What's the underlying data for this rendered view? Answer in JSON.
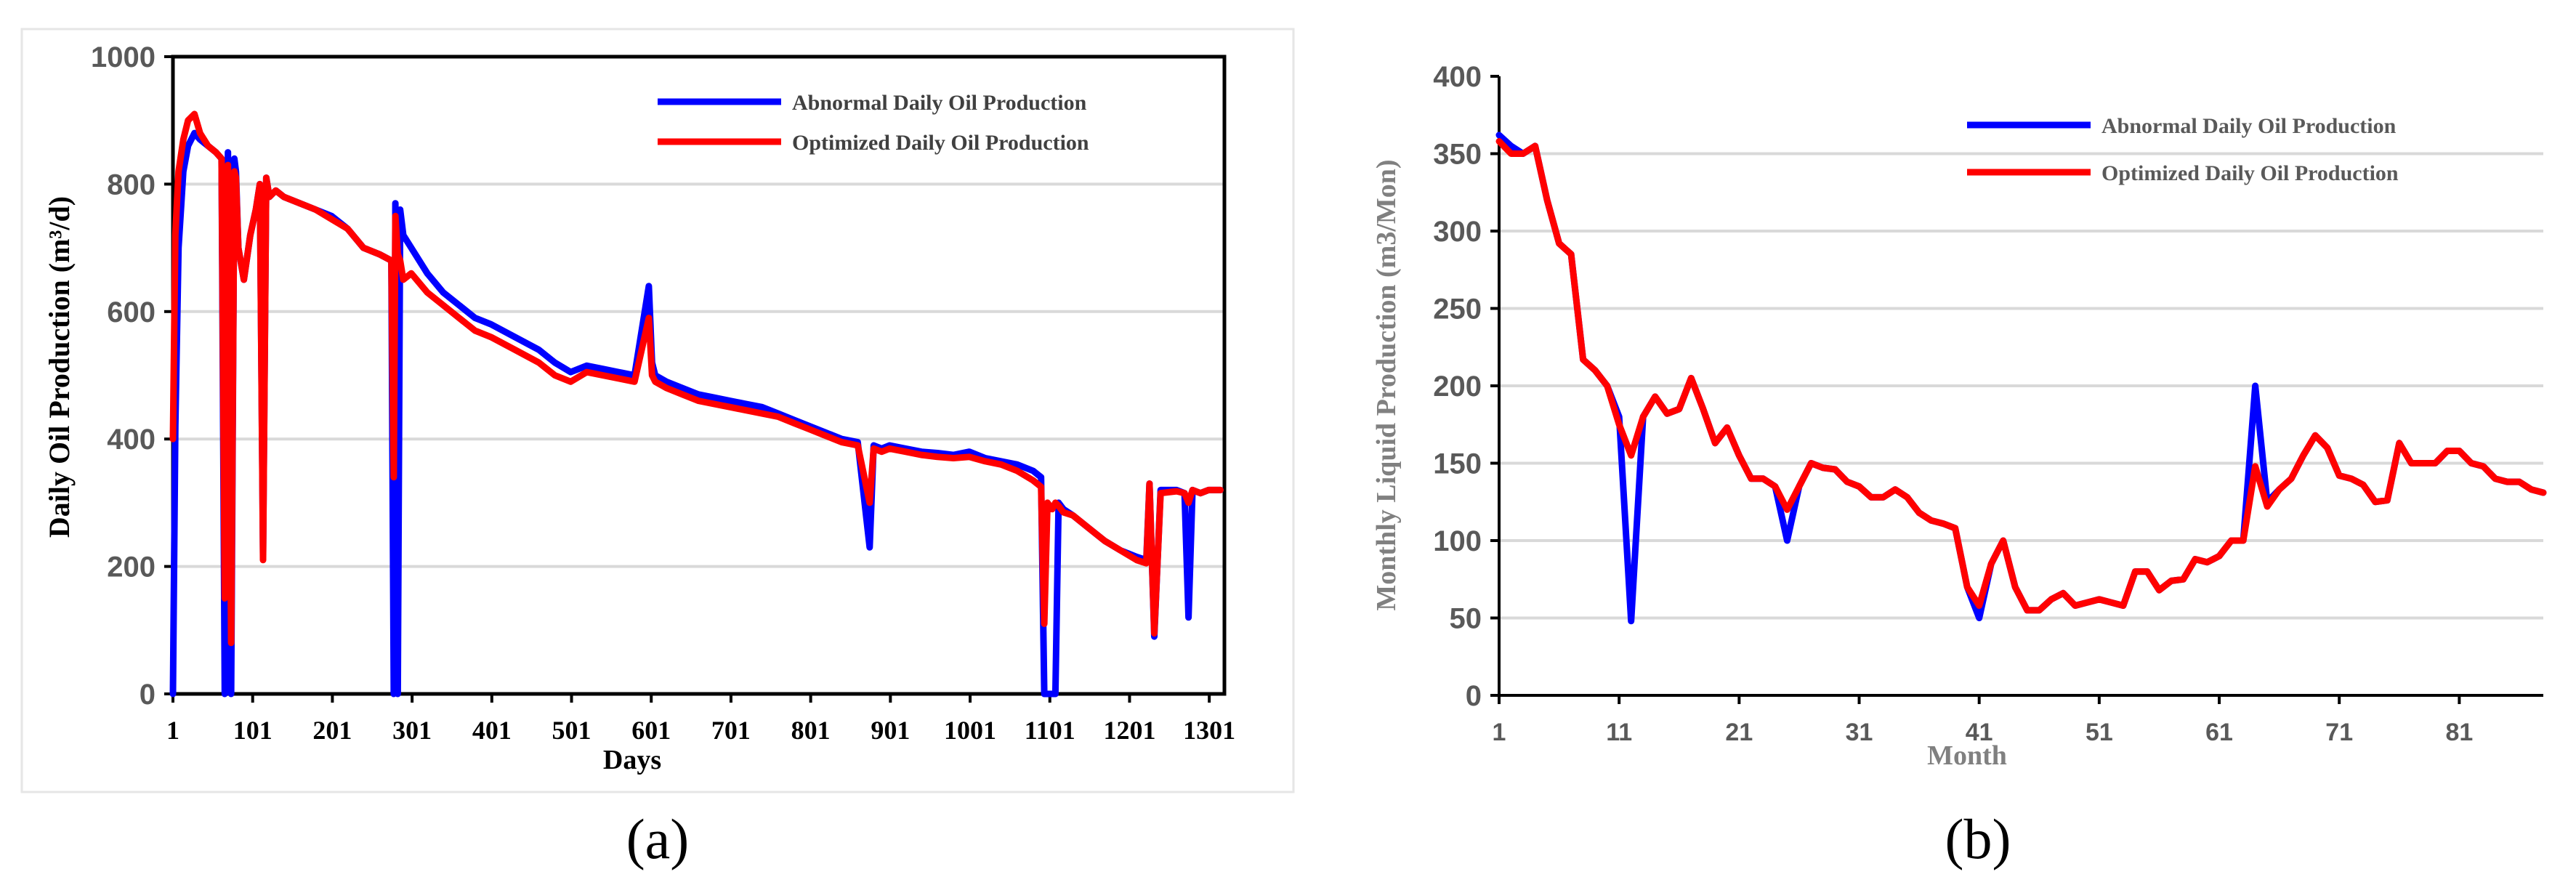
{
  "figure": {
    "panel_a_label": "(a)",
    "panel_b_label": "(b)"
  },
  "chart_data": [
    {
      "id": "a",
      "type": "line",
      "xlabel": "Days",
      "ylabel": "Daily Oil Production (m³/d)",
      "xlim": [
        1,
        1320
      ],
      "ylim": [
        0,
        1000
      ],
      "xticks": [
        1,
        101,
        201,
        301,
        401,
        501,
        601,
        701,
        801,
        901,
        1001,
        1101,
        1201,
        1301
      ],
      "xtick_labels": [
        "1",
        "101",
        "201",
        "301",
        "401",
        "501",
        "601",
        "701",
        "801",
        "901",
        "1001",
        "1101",
        "1201",
        "1301"
      ],
      "yticks": [
        0,
        200,
        400,
        600,
        800,
        1000
      ],
      "ytick_labels": [
        "0",
        "200",
        "400",
        "600",
        "800",
        "1000"
      ],
      "grid": true,
      "legend_position": "top-right",
      "colors": {
        "abnormal": "#0000ff",
        "optimized": "#ff0000",
        "grid": "#d9d9d9",
        "frame": "#000000"
      },
      "series": [
        {
          "name": "Abnormal Daily Oil Production",
          "key": "abnormal",
          "x": [
            1,
            4,
            8,
            14,
            20,
            28,
            35,
            45,
            55,
            62,
            66,
            70,
            74,
            78,
            80,
            83,
            90,
            98,
            105,
            110,
            114,
            118,
            122,
            130,
            140,
            160,
            180,
            200,
            220,
            240,
            260,
            275,
            278,
            280,
            283,
            286,
            290,
            300,
            320,
            340,
            360,
            380,
            400,
            430,
            460,
            480,
            500,
            520,
            540,
            560,
            580,
            598,
            602,
            606,
            620,
            640,
            660,
            680,
            700,
            720,
            740,
            760,
            780,
            800,
            820,
            840,
            860,
            875,
            880,
            890,
            900,
            920,
            940,
            960,
            980,
            1000,
            1020,
            1040,
            1060,
            1080,
            1090,
            1094,
            1098,
            1104,
            1108,
            1112,
            1118,
            1130,
            1150,
            1170,
            1190,
            1210,
            1222,
            1226,
            1232,
            1240,
            1260,
            1270,
            1275,
            1280,
            1290,
            1300,
            1315
          ],
          "y": [
            0,
            420,
            700,
            820,
            860,
            880,
            870,
            860,
            850,
            840,
            0,
            850,
            0,
            840,
            820,
            700,
            650,
            720,
            760,
            800,
            220,
            810,
            780,
            790,
            780,
            770,
            760,
            750,
            730,
            700,
            690,
            680,
            0,
            770,
            0,
            760,
            720,
            700,
            660,
            630,
            610,
            590,
            580,
            560,
            540,
            520,
            505,
            515,
            510,
            505,
            500,
            640,
            520,
            500,
            490,
            480,
            470,
            465,
            460,
            455,
            450,
            440,
            430,
            420,
            410,
            400,
            395,
            230,
            390,
            385,
            390,
            385,
            380,
            378,
            375,
            380,
            370,
            365,
            360,
            350,
            340,
            0,
            0,
            0,
            0,
            300,
            290,
            280,
            260,
            240,
            225,
            215,
            210,
            330,
            90,
            320,
            320,
            315,
            120,
            320,
            315,
            320,
            320
          ]
        },
        {
          "name": "Optimized Daily Oil Production",
          "key": "optimized",
          "x": [
            1,
            4,
            8,
            14,
            20,
            28,
            35,
            45,
            55,
            62,
            66,
            70,
            74,
            78,
            80,
            83,
            90,
            98,
            105,
            110,
            114,
            118,
            122,
            130,
            140,
            160,
            180,
            200,
            220,
            240,
            260,
            275,
            278,
            280,
            283,
            286,
            290,
            300,
            320,
            340,
            360,
            380,
            400,
            430,
            460,
            480,
            500,
            520,
            540,
            560,
            580,
            598,
            602,
            606,
            620,
            640,
            660,
            680,
            700,
            720,
            740,
            760,
            780,
            800,
            820,
            840,
            860,
            875,
            880,
            890,
            900,
            920,
            940,
            960,
            980,
            1000,
            1020,
            1040,
            1060,
            1080,
            1090,
            1094,
            1098,
            1104,
            1108,
            1112,
            1118,
            1130,
            1150,
            1170,
            1190,
            1210,
            1222,
            1226,
            1232,
            1240,
            1260,
            1270,
            1275,
            1280,
            1290,
            1300,
            1315
          ],
          "y": [
            400,
            720,
            820,
            870,
            900,
            910,
            880,
            860,
            850,
            840,
            150,
            830,
            80,
            820,
            810,
            700,
            650,
            720,
            760,
            800,
            210,
            810,
            780,
            790,
            780,
            770,
            760,
            745,
            730,
            700,
            690,
            680,
            340,
            750,
            690,
            680,
            650,
            660,
            630,
            610,
            590,
            570,
            560,
            540,
            520,
            500,
            490,
            505,
            500,
            495,
            490,
            590,
            500,
            490,
            480,
            470,
            460,
            455,
            450,
            445,
            440,
            435,
            425,
            415,
            405,
            395,
            390,
            300,
            385,
            380,
            385,
            380,
            375,
            372,
            370,
            372,
            365,
            360,
            350,
            335,
            325,
            110,
            300,
            290,
            300,
            295,
            285,
            280,
            260,
            240,
            225,
            210,
            205,
            330,
            95,
            315,
            318,
            315,
            300,
            320,
            315,
            320,
            320
          ]
        }
      ]
    },
    {
      "id": "b",
      "type": "line",
      "xlabel": "Month",
      "ylabel": "Monthly Liquid Production (m3/Mon)",
      "xlim": [
        1,
        88
      ],
      "ylim": [
        0,
        400
      ],
      "xticks": [
        1,
        11,
        21,
        31,
        41,
        51,
        61,
        71,
        81
      ],
      "xtick_labels": [
        "1",
        "11",
        "21",
        "31",
        "41",
        "51",
        "61",
        "71",
        "81"
      ],
      "yticks": [
        0,
        50,
        100,
        150,
        200,
        250,
        300,
        350,
        400
      ],
      "ytick_labels": [
        "0",
        "50",
        "100",
        "150",
        "200",
        "250",
        "300",
        "350",
        "400"
      ],
      "grid": true,
      "legend_position": "top-right",
      "colors": {
        "abnormal": "#0000ff",
        "optimized": "#ff0000",
        "grid": "#d9d9d9",
        "frame": "#000000"
      },
      "series": [
        {
          "name": "Abnormal Daily Oil Production",
          "key": "abnormal",
          "x": [
            1,
            2,
            3,
            4,
            5,
            6,
            7,
            8,
            9,
            10,
            11,
            12,
            13,
            14,
            15,
            16,
            17,
            18,
            19,
            20,
            21,
            22,
            23,
            24,
            25,
            26,
            27,
            28,
            29,
            30,
            31,
            32,
            33,
            34,
            35,
            36,
            37,
            38,
            39,
            40,
            41,
            42,
            43,
            44,
            45,
            46,
            47,
            48,
            49,
            50,
            51,
            52,
            53,
            54,
            55,
            56,
            57,
            58,
            59,
            60,
            61,
            62,
            63,
            64,
            65,
            66,
            67,
            68,
            69,
            70,
            71,
            72,
            73,
            74,
            75,
            76,
            77,
            78,
            79,
            80,
            81,
            82,
            83,
            84,
            85,
            86,
            87,
            88
          ],
          "y": [
            362,
            355,
            350,
            355,
            320,
            292,
            285,
            217,
            210,
            200,
            180,
            48,
            180,
            193,
            182,
            185,
            205,
            185,
            163,
            173,
            155,
            140,
            140,
            135,
            100,
            135,
            150,
            147,
            146,
            138,
            135,
            128,
            128,
            133,
            128,
            118,
            113,
            111,
            108,
            70,
            50,
            85,
            100,
            70,
            55,
            55,
            62,
            66,
            58,
            60,
            62,
            60,
            58,
            80,
            80,
            68,
            74,
            75,
            88,
            86,
            90,
            100,
            100,
            200,
            125,
            133,
            140,
            155,
            168,
            160,
            142,
            140,
            136,
            125,
            126,
            163,
            150,
            150,
            150,
            158,
            158,
            150,
            148,
            140,
            138,
            138,
            133,
            131
          ]
        },
        {
          "name": "Optimized Daily Oil Production",
          "key": "optimized",
          "x": [
            1,
            2,
            3,
            4,
            5,
            6,
            7,
            8,
            9,
            10,
            11,
            12,
            13,
            14,
            15,
            16,
            17,
            18,
            19,
            20,
            21,
            22,
            23,
            24,
            25,
            26,
            27,
            28,
            29,
            30,
            31,
            32,
            33,
            34,
            35,
            36,
            37,
            38,
            39,
            40,
            41,
            42,
            43,
            44,
            45,
            46,
            47,
            48,
            49,
            50,
            51,
            52,
            53,
            54,
            55,
            56,
            57,
            58,
            59,
            60,
            61,
            62,
            63,
            64,
            65,
            66,
            67,
            68,
            69,
            70,
            71,
            72,
            73,
            74,
            75,
            76,
            77,
            78,
            79,
            80,
            81,
            82,
            83,
            84,
            85,
            86,
            87,
            88
          ],
          "y": [
            358,
            350,
            350,
            355,
            320,
            292,
            285,
            217,
            210,
            200,
            175,
            155,
            180,
            193,
            182,
            185,
            205,
            185,
            163,
            173,
            155,
            140,
            140,
            135,
            120,
            135,
            150,
            147,
            146,
            138,
            135,
            128,
            128,
            133,
            128,
            118,
            113,
            111,
            108,
            70,
            58,
            85,
            100,
            70,
            55,
            55,
            62,
            66,
            58,
            60,
            62,
            60,
            58,
            80,
            80,
            68,
            74,
            75,
            88,
            86,
            90,
            100,
            100,
            148,
            122,
            133,
            140,
            155,
            168,
            160,
            142,
            140,
            136,
            125,
            126,
            163,
            150,
            150,
            150,
            158,
            158,
            150,
            148,
            140,
            138,
            138,
            133,
            131
          ]
        }
      ]
    }
  ]
}
